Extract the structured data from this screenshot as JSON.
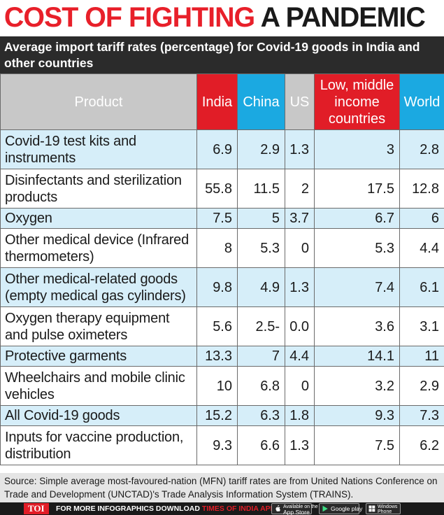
{
  "header": {
    "title_red": "COST OF FIGHTING",
    "title_black": "A PANDEMIC",
    "subtitle": "Average import tariff rates (percentage) for Covid-19 goods in India and other countries"
  },
  "colors": {
    "red": "#e11d27",
    "blue": "#1ba9e1",
    "light_blue": "#d6eef9",
    "dark": "#2b2b2b"
  },
  "chart_data": {
    "type": "table",
    "title": "COST OF FIGHTING A PANDEMIC",
    "subtitle": "Average import tariff rates (percentage) for Covid-19 goods in India and other countries",
    "columns": [
      "Product",
      "India",
      "China",
      "US",
      "Low, middle income countries",
      "World"
    ],
    "rows": [
      {
        "product": "Covid-19 test kits and instruments",
        "values": [
          "6.9",
          "2.9",
          "1.3",
          "3",
          "2.8"
        ]
      },
      {
        "product": "Disinfectants and sterilization products",
        "values": [
          "55.8",
          "11.5",
          "2",
          "17.5",
          "12.8"
        ]
      },
      {
        "product": "Oxygen",
        "values": [
          "7.5",
          "5",
          "3.7",
          "6.7",
          "6"
        ]
      },
      {
        "product": "Other medical device (Infrared thermometers)",
        "values": [
          "8",
          "5.3",
          "0",
          "5.3",
          "4.4"
        ]
      },
      {
        "product": "Other medical-related goods (empty medical gas cylinders)",
        "values": [
          "9.8",
          "4.9",
          "1.3",
          "7.4",
          "6.1"
        ]
      },
      {
        "product": "Oxygen therapy equipment and pulse oximeters",
        "values": [
          "5.6",
          "2.5-",
          "0.0",
          "3.6",
          "3.1"
        ]
      },
      {
        "product": "Protective garments",
        "values": [
          "13.3",
          "7",
          "4.4",
          "14.1",
          "11"
        ]
      },
      {
        "product": "Wheelchairs and mobile clinic vehicles",
        "values": [
          "10",
          "6.8",
          "0",
          "3.2",
          "2.9"
        ]
      },
      {
        "product": "All Covid-19 goods",
        "values": [
          "15.2",
          "6.3",
          "1.8",
          "9.3",
          "7.3"
        ]
      },
      {
        "product": "Inputs for vaccine production, distribution",
        "values": [
          "9.3",
          "6.6",
          "1.3",
          "7.5",
          "6.2"
        ]
      }
    ]
  },
  "source": "Source: Simple average most-favoured-nation (MFN) tariff rates are from United Nations Conference on Trade and Development (UNCTAD)'s Trade Analysis Information System (TRAINS).",
  "footer": {
    "logo": "TOI",
    "promo_text": "FOR MORE  INFOGRAPHICS DOWNLOAD",
    "promo_app": "TIMES OF INDIA APP",
    "badges": {
      "apple_small": "Available on the",
      "apple_big": "App Store",
      "google": "Google play",
      "windows_1": "Windows",
      "windows_2": "Phone"
    },
    "icons": [
      "apple-icon",
      "google-play-icon",
      "windows-icon"
    ]
  }
}
